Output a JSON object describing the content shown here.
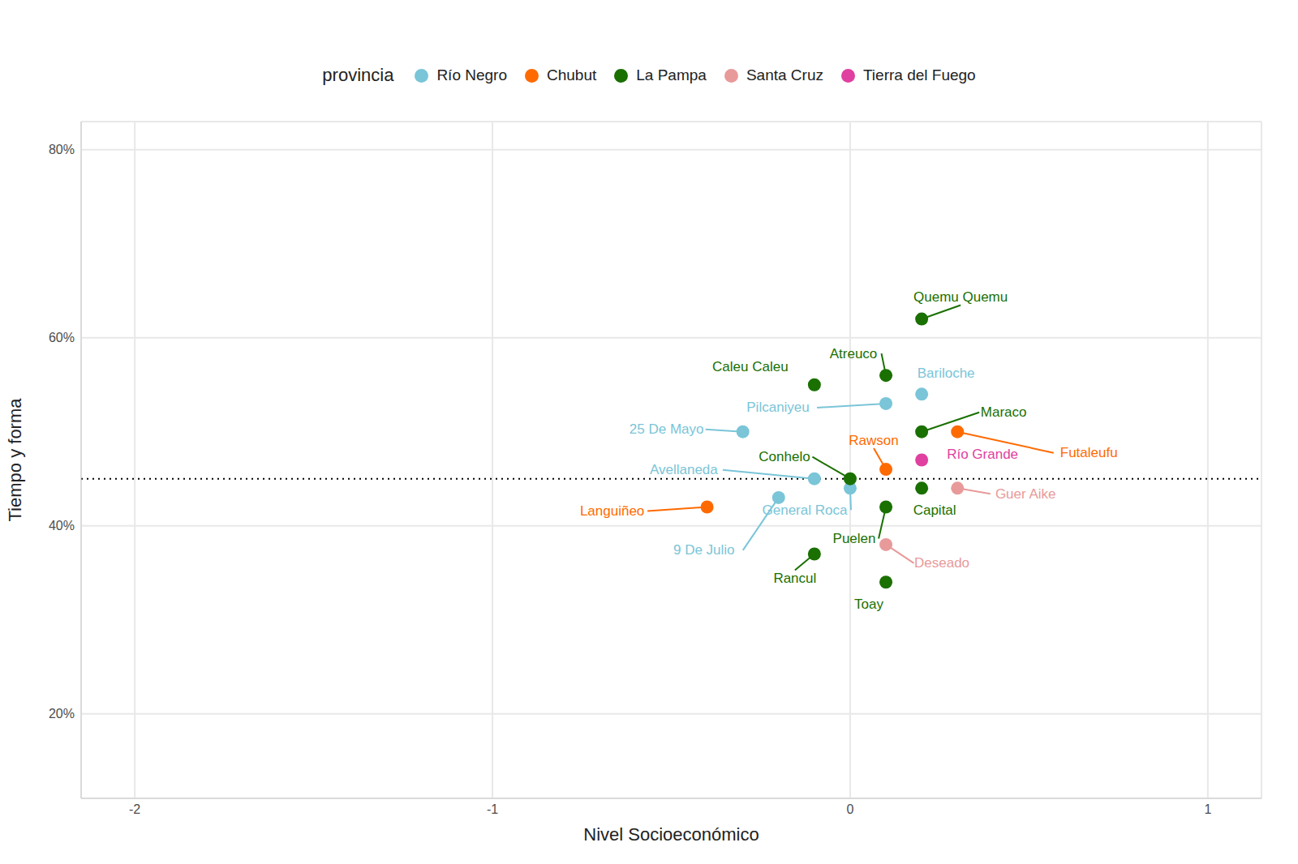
{
  "chart_data": {
    "type": "scatter",
    "x_label": "Nivel Socioeconómico",
    "y_label": "Tiempo y forma",
    "legend_title": "provincia",
    "legend": "top",
    "grid": true,
    "marker": "circle",
    "data_labels": true,
    "xlim": [
      -2.15,
      1.15
    ],
    "xticks": [
      -2,
      -1,
      0,
      1
    ],
    "ylim": [
      11,
      83
    ],
    "yticks": [
      {
        "value": 20,
        "label": "20%"
      },
      {
        "value": 40,
        "label": "40%"
      },
      {
        "value": 60,
        "label": "60%"
      },
      {
        "value": 80,
        "label": "80%"
      }
    ],
    "hline": 45,
    "series": [
      {
        "name": "Río Negro",
        "color": "#7ac5d8",
        "labels": [
          "Bariloche",
          "Pilcaniyeu",
          "25 De Mayo",
          "Avellaneda",
          "General Roca",
          "9 De Julio"
        ],
        "x": [
          0.2,
          0.1,
          -0.3,
          -0.1,
          0,
          -0.2
        ],
        "values": [
          54,
          53,
          50,
          45,
          44,
          43
        ]
      },
      {
        "name": "Chubut",
        "color": "#ff6a00",
        "labels": [
          "Futaleufu",
          "Rawson",
          "Languiñeo"
        ],
        "x": [
          0.3,
          0.1,
          -0.4
        ],
        "values": [
          50,
          46,
          42
        ]
      },
      {
        "name": "La Pampa",
        "color": "#1a7000",
        "labels": [
          "Quemu Quemu",
          "Atreuco",
          "Caleu Caleu",
          "Maraco",
          "Conhelo",
          "Capital",
          "Puelen",
          "Rancul",
          "Toay"
        ],
        "x": [
          0.2,
          0.1,
          -0.1,
          0.2,
          0,
          0.2,
          0.1,
          -0.1,
          0.1
        ],
        "values": [
          62,
          56,
          55,
          50,
          45,
          44,
          42,
          37,
          34
        ]
      },
      {
        "name": "Santa Cruz",
        "color": "#e89a9a",
        "labels": [
          "Guer Aike",
          "Deseado"
        ],
        "x": [
          0.3,
          0.1
        ],
        "values": [
          44,
          38
        ]
      },
      {
        "name": "Tierra del Fuego",
        "color": "#e040a0",
        "labels": [
          "Río Grande"
        ],
        "x": [
          0.2
        ],
        "values": [
          47
        ]
      }
    ]
  }
}
